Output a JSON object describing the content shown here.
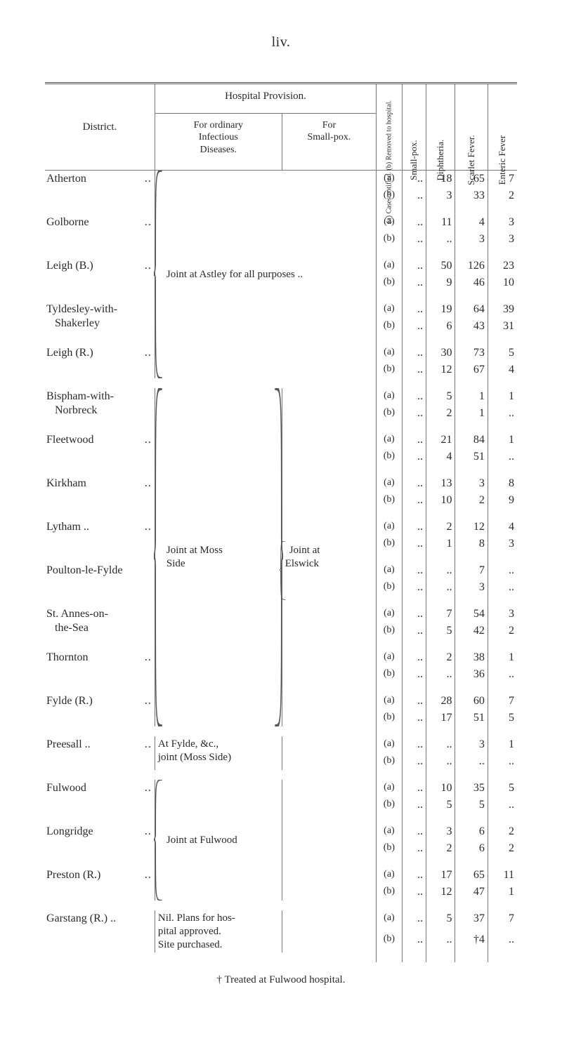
{
  "page_number_label": "liv.",
  "footnote": "† Treated at Fulwood hospital.",
  "headers": {
    "district": "District.",
    "hospital_provision": "Hospital Provision.",
    "for_ordinary": "For ordinary\nInfectious\nDiseases.",
    "for_smallpox": "For\nSmall-pox.",
    "cases_notified": "(a) Cases notified.\n(b) Removed to\n    hospital.",
    "small_pox": "Small-pox.",
    "diphtheria": "Diphtheria.",
    "scarlet": "Scarlet Fever.",
    "enteric": "Enteric Fever"
  },
  "colors": {
    "text": "#2a2a2a",
    "rule": "#777777",
    "background": "#ffffff"
  },
  "groups": [
    {
      "ordinary_caption": "Joint at Astley for all purposes ..",
      "ordinary_caption_colspan": 2,
      "brace": true,
      "districts": [
        {
          "name": "Atherton",
          "suffix": "..",
          "rows": [
            {
              "spox": "..",
              "diph": "18",
              "scarlet": "65",
              "enteric": "7"
            },
            {
              "spox": "..",
              "diph": "3",
              "scarlet": "33",
              "enteric": "2"
            }
          ]
        },
        {
          "name": "Golborne",
          "suffix": "..",
          "rows": [
            {
              "spox": "..",
              "diph": "11",
              "scarlet": "4",
              "enteric": "3"
            },
            {
              "spox": "..",
              "diph": "..",
              "scarlet": "3",
              "enteric": "3"
            }
          ]
        },
        {
          "name": "Leigh (B.)",
          "suffix": "..",
          "rows": [
            {
              "spox": "..",
              "diph": "50",
              "scarlet": "126",
              "enteric": "23"
            },
            {
              "spox": "..",
              "diph": "9",
              "scarlet": "46",
              "enteric": "10"
            }
          ]
        },
        {
          "name": "Tyldesley-with-",
          "name2": "Shakerley",
          "suffix": "",
          "rows": [
            {
              "spox": "..",
              "diph": "19",
              "scarlet": "64",
              "enteric": "39"
            },
            {
              "spox": "..",
              "diph": "6",
              "scarlet": "43",
              "enteric": "31"
            }
          ]
        },
        {
          "name": "Leigh (R.)",
          "suffix": "..",
          "rows": [
            {
              "spox": "..",
              "diph": "30",
              "scarlet": "73",
              "enteric": "5"
            },
            {
              "spox": "..",
              "diph": "12",
              "scarlet": "67",
              "enteric": "4"
            }
          ]
        }
      ]
    },
    {
      "ordinary_caption": "Joint at Moss\nSide",
      "smallpox_caption": "Joint at\nElswick",
      "brace": true,
      "right_brace": true,
      "districts": [
        {
          "name": "Bispham-with-",
          "name2": "Norbreck",
          "suffix": "",
          "rows": [
            {
              "spox": "..",
              "diph": "5",
              "scarlet": "1",
              "enteric": "1"
            },
            {
              "spox": "..",
              "diph": "2",
              "scarlet": "1",
              "enteric": ".."
            }
          ]
        },
        {
          "name": "Fleetwood",
          "suffix": "..",
          "rows": [
            {
              "spox": "..",
              "diph": "21",
              "scarlet": "84",
              "enteric": "1"
            },
            {
              "spox": "..",
              "diph": "4",
              "scarlet": "51",
              "enteric": ".."
            }
          ]
        },
        {
          "name": "Kirkham",
          "suffix": "..",
          "rows": [
            {
              "spox": "..",
              "diph": "13",
              "scarlet": "3",
              "enteric": "8"
            },
            {
              "spox": "..",
              "diph": "10",
              "scarlet": "2",
              "enteric": "9"
            }
          ]
        },
        {
          "name": "Lytham ..",
          "suffix": "..",
          "rows": [
            {
              "spox": "..",
              "diph": "2",
              "scarlet": "12",
              "enteric": "4"
            },
            {
              "spox": "..",
              "diph": "1",
              "scarlet": "8",
              "enteric": "3"
            }
          ]
        },
        {
          "name": "Poulton-le-Fylde",
          "suffix": "",
          "rows": [
            {
              "spox": "..",
              "diph": "..",
              "scarlet": "7",
              "enteric": ".."
            },
            {
              "spox": "..",
              "diph": "..",
              "scarlet": "3",
              "enteric": ".."
            }
          ]
        },
        {
          "name": "St. Annes-on-",
          "name2": "the-Sea",
          "suffix": "",
          "rows": [
            {
              "spox": "..",
              "diph": "7",
              "scarlet": "54",
              "enteric": "3"
            },
            {
              "spox": "..",
              "diph": "5",
              "scarlet": "42",
              "enteric": "2"
            }
          ]
        },
        {
          "name": "Thornton",
          "suffix": "..",
          "rows": [
            {
              "spox": "..",
              "diph": "2",
              "scarlet": "38",
              "enteric": "1"
            },
            {
              "spox": "..",
              "diph": "..",
              "scarlet": "36",
              "enteric": ".."
            }
          ]
        },
        {
          "name": "Fylde (R.)",
          "suffix": "..",
          "rows": [
            {
              "spox": "..",
              "diph": "28",
              "scarlet": "60",
              "enteric": "7"
            },
            {
              "spox": "..",
              "diph": "17",
              "scarlet": "51",
              "enteric": "5"
            }
          ]
        }
      ]
    },
    {
      "brace": false,
      "districts": [
        {
          "name": "Preesall ..",
          "suffix": "..",
          "ordinary": "At Fylde, &c.,\njoint (Moss Side)",
          "rows": [
            {
              "spox": "..",
              "diph": "..",
              "scarlet": "3",
              "enteric": "1"
            },
            {
              "spox": "..",
              "diph": "..",
              "scarlet": "..",
              "enteric": ".."
            }
          ]
        }
      ]
    },
    {
      "ordinary_caption": "Joint at Fulwood",
      "brace": true,
      "districts": [
        {
          "name": "Fulwood",
          "suffix": "..",
          "rows": [
            {
              "spox": "..",
              "diph": "10",
              "scarlet": "35",
              "enteric": "5"
            },
            {
              "spox": "..",
              "diph": "5",
              "scarlet": "5",
              "enteric": ".."
            }
          ]
        },
        {
          "name": "Longridge",
          "suffix": "..",
          "rows": [
            {
              "spox": "..",
              "diph": "3",
              "scarlet": "6",
              "enteric": "2"
            },
            {
              "spox": "..",
              "diph": "2",
              "scarlet": "6",
              "enteric": "2"
            }
          ]
        },
        {
          "name": "Preston (R.)",
          "suffix": "..",
          "rows": [
            {
              "spox": "..",
              "diph": "17",
              "scarlet": "65",
              "enteric": "11"
            },
            {
              "spox": "..",
              "diph": "12",
              "scarlet": "47",
              "enteric": "1"
            }
          ]
        }
      ]
    },
    {
      "brace": false,
      "districts": [
        {
          "name": "Garstang (R.) ..",
          "suffix": "",
          "ordinary": "Nil. Plans for hos-\npital approved.\nSite purchased.",
          "rows": [
            {
              "spox": "..",
              "diph": "5",
              "scarlet": "37",
              "enteric": "7"
            },
            {
              "spox": "..",
              "diph": "..",
              "scarlet": "†4",
              "enteric": ".."
            }
          ]
        }
      ]
    }
  ]
}
